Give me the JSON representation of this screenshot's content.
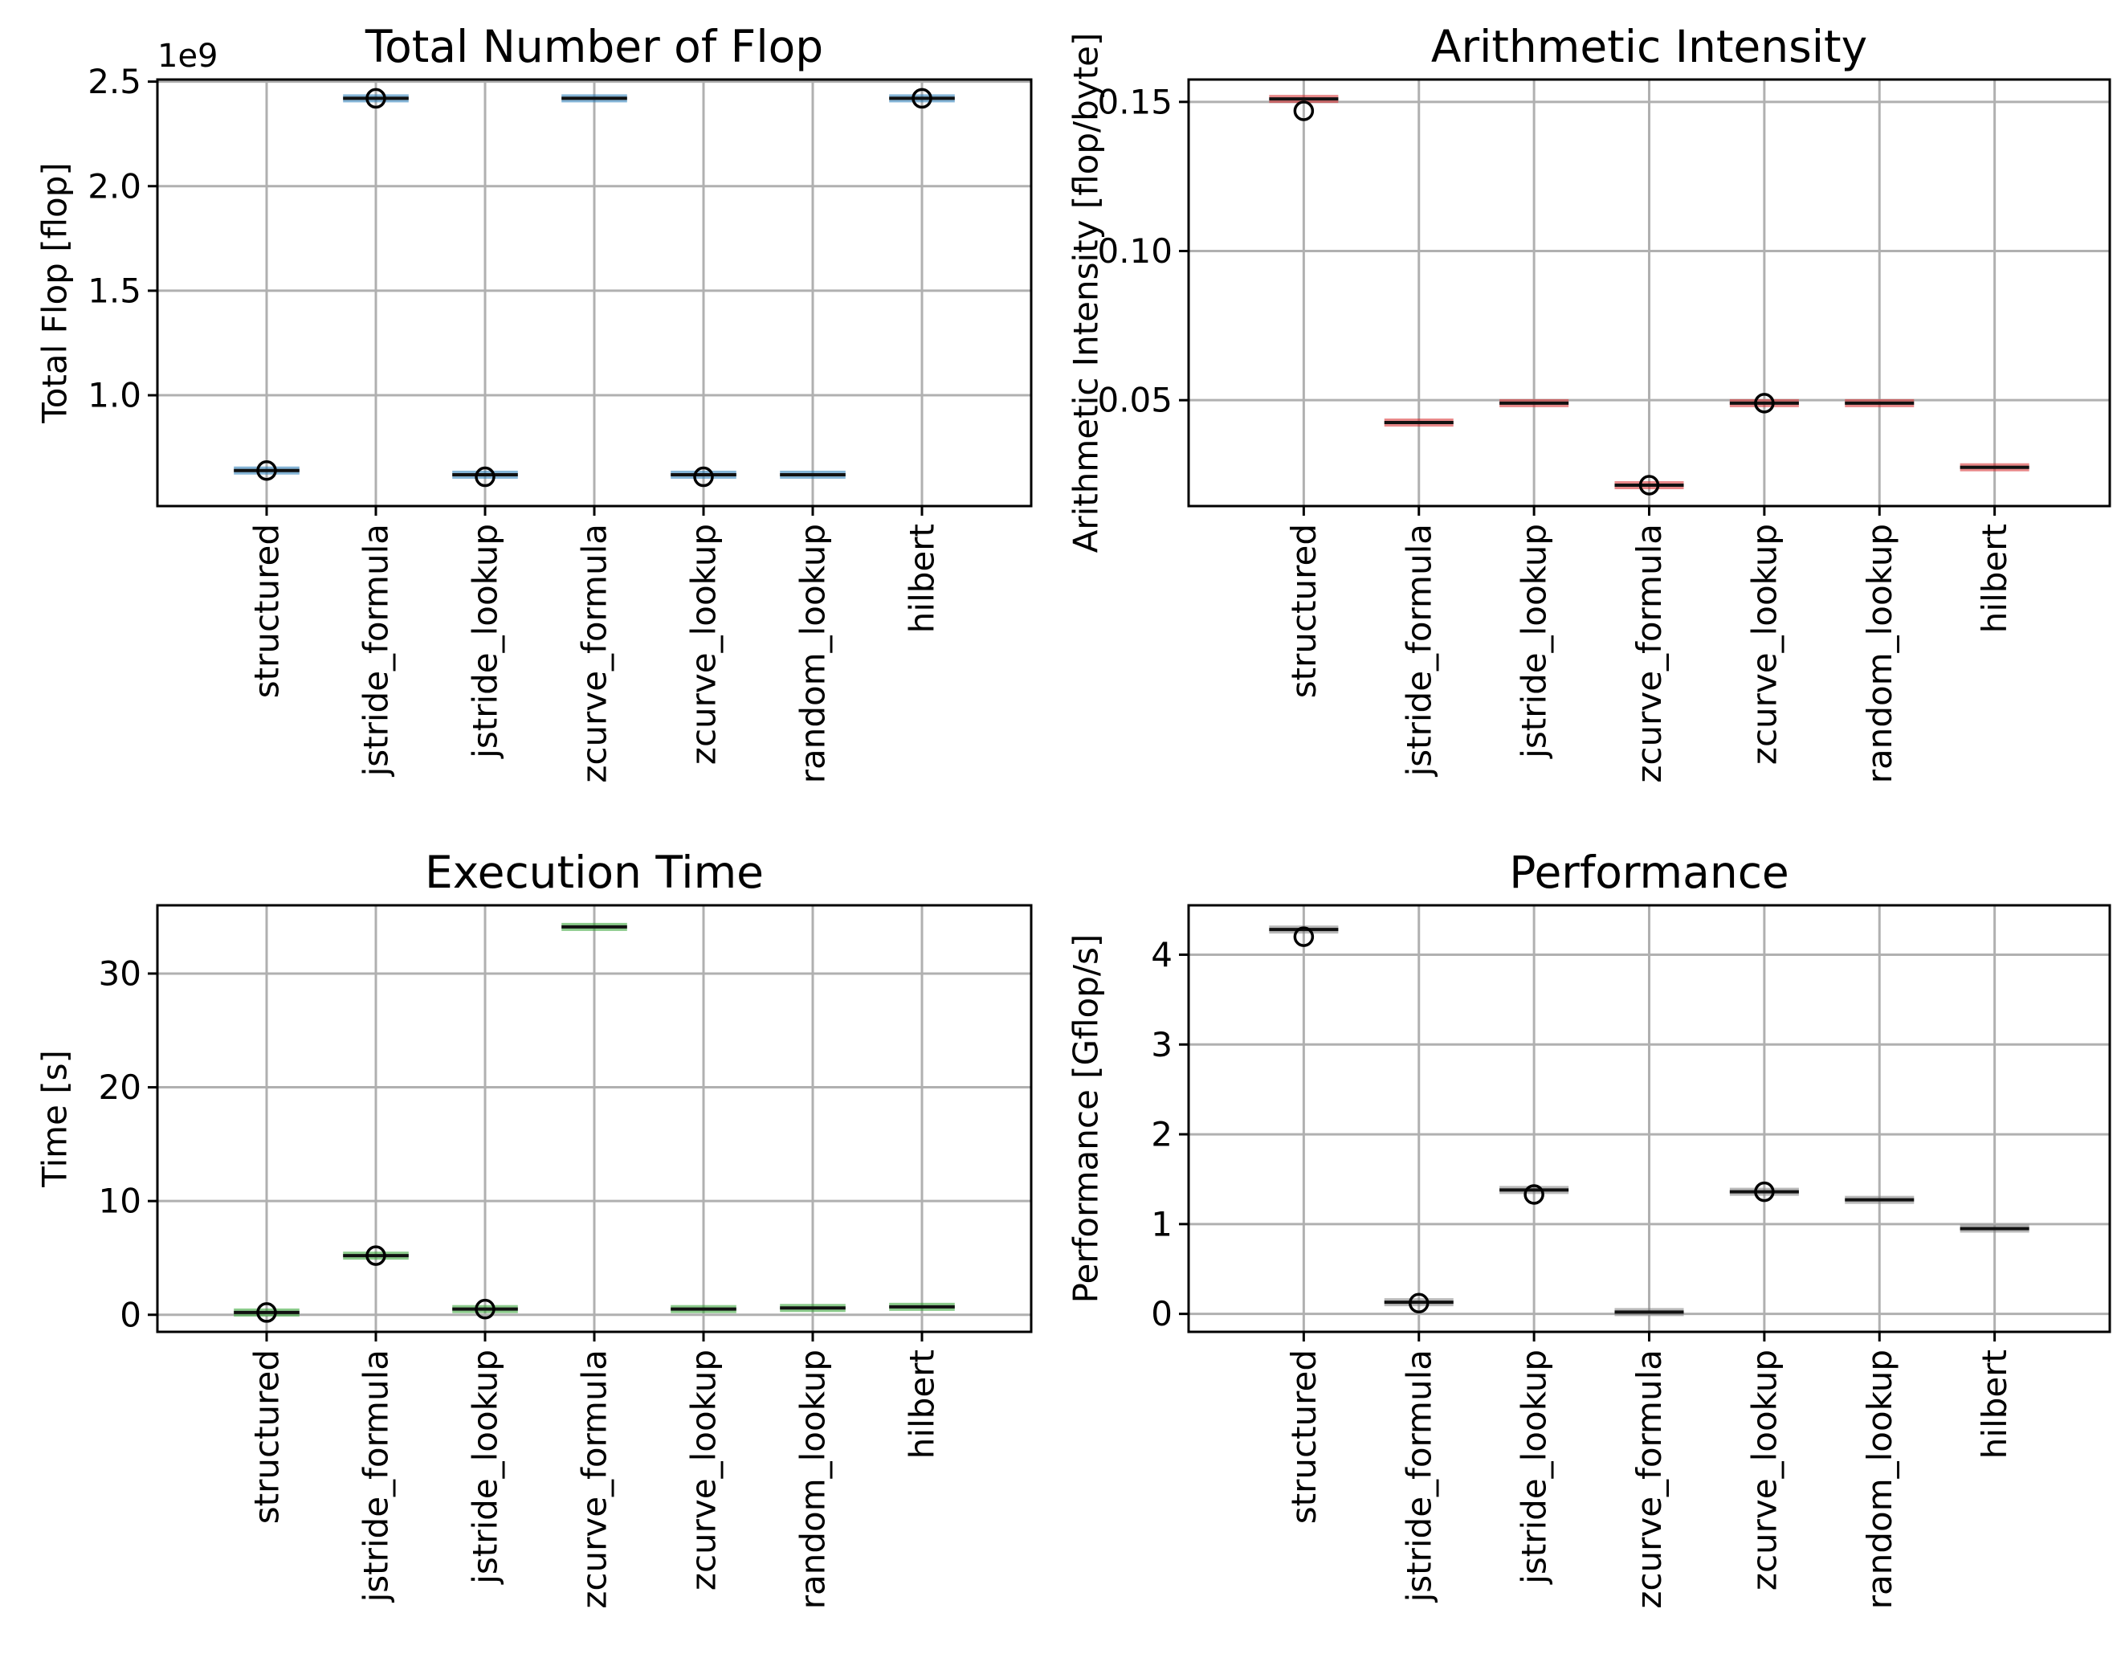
{
  "chart_data": [
    {
      "type": "box",
      "title": "Total Number of Flop",
      "xlabel": "",
      "ylabel": "Total Flop [flop]",
      "offset_label": "1e9",
      "box_color": "#1f77b4",
      "categories": [
        "structured",
        "jstride_formula",
        "jstride_lookup",
        "zcurve_formula",
        "zcurve_lookup",
        "random_lookup",
        "hilbert"
      ],
      "medians": [
        0.64,
        2.42,
        0.62,
        2.42,
        0.62,
        0.62,
        2.42
      ],
      "outliers": [
        [
          0.64
        ],
        [
          2.42
        ],
        [
          0.61
        ],
        [],
        [
          0.61
        ],
        [],
        [
          2.42
        ]
      ],
      "ylim": [
        0.47,
        2.51
      ],
      "yticks": [
        1.0,
        1.5,
        2.0,
        2.5
      ],
      "ytick_labels": [
        "1.0",
        "1.5",
        "2.0",
        "2.5"
      ],
      "grid": true
    },
    {
      "type": "box",
      "title": "Arithmetic Intensity",
      "xlabel": "",
      "ylabel": "Arithmetic Intensity [flop/byte]",
      "offset_label": "",
      "box_color": "#d62728",
      "categories": [
        "structured",
        "jstride_formula",
        "jstride_lookup",
        "zcurve_formula",
        "zcurve_lookup",
        "random_lookup",
        "hilbert"
      ],
      "medians": [
        0.151,
        0.0425,
        0.049,
        0.0215,
        0.049,
        0.049,
        0.0275
      ],
      "outliers": [
        [
          0.147
        ],
        [],
        [],
        [
          0.0215
        ],
        [
          0.049
        ],
        [],
        []
      ],
      "ylim": [
        0.0145,
        0.1575
      ],
      "yticks": [
        0.05,
        0.1,
        0.15
      ],
      "ytick_labels": [
        "0.05",
        "0.10",
        "0.15"
      ],
      "grid": true
    },
    {
      "type": "box",
      "title": "Execution Time",
      "xlabel": "",
      "ylabel": "Time [s]",
      "offset_label": "",
      "box_color": "#2ca02c",
      "categories": [
        "structured",
        "jstride_formula",
        "jstride_lookup",
        "zcurve_formula",
        "zcurve_lookup",
        "random_lookup",
        "hilbert"
      ],
      "medians": [
        0.2,
        5.2,
        0.5,
        34.1,
        0.5,
        0.6,
        0.7
      ],
      "outliers": [
        [
          0.2
        ],
        [
          5.2
        ],
        [
          0.5
        ],
        [],
        [],
        [],
        []
      ],
      "ylim": [
        -1.5,
        36
      ],
      "yticks": [
        0,
        10,
        20,
        30
      ],
      "ytick_labels": [
        "0",
        "10",
        "20",
        "30"
      ],
      "grid": true
    },
    {
      "type": "box",
      "title": "Performance",
      "xlabel": "",
      "ylabel": "Performance [Gflop/s]",
      "offset_label": "",
      "box_color": "#7f7f7f",
      "categories": [
        "structured",
        "jstride_formula",
        "jstride_lookup",
        "zcurve_formula",
        "zcurve_lookup",
        "random_lookup",
        "hilbert"
      ],
      "medians": [
        4.28,
        0.13,
        1.38,
        0.02,
        1.36,
        1.27,
        0.95
      ],
      "outliers": [
        [
          4.2
        ],
        [
          0.12
        ],
        [
          1.33
        ],
        [],
        [
          1.36
        ],
        [],
        []
      ],
      "ylim": [
        -0.2,
        4.55
      ],
      "yticks": [
        0,
        1,
        2,
        3,
        4
      ],
      "ytick_labels": [
        "0",
        "1",
        "2",
        "3",
        "4"
      ],
      "grid": true
    }
  ]
}
